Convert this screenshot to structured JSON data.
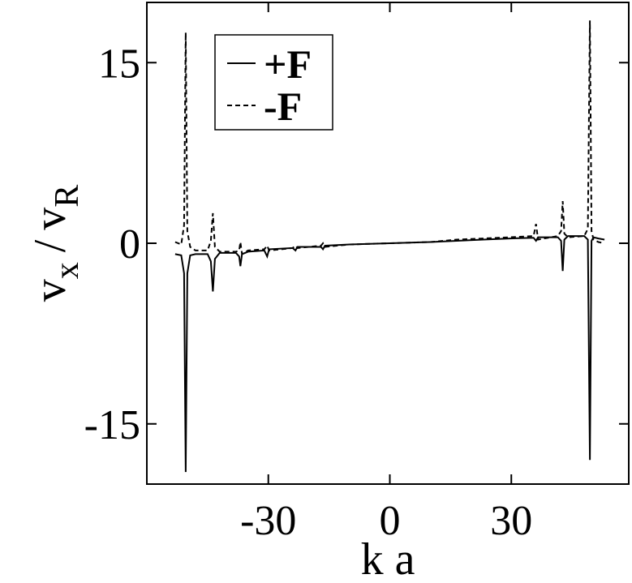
{
  "chart_data": {
    "type": "line",
    "xlabel": "k a",
    "ylabel_parts": [
      "v",
      "x",
      "/",
      "v",
      "R"
    ],
    "x": [
      -53,
      -51.5,
      -50.8,
      -50.4,
      -50,
      -49.3,
      -48,
      -45,
      -44.2,
      -43.7,
      -43.2,
      -42,
      -38,
      -37.2,
      -36.9,
      -36.5,
      -35,
      -31,
      -30.3,
      -29.8,
      -24,
      -23.3,
      -22.8,
      -17,
      -16.5,
      -16,
      -10,
      0,
      10,
      16.5,
      23,
      29.7,
      35.5,
      36.1,
      36.6,
      41.5,
      42.3,
      42.7,
      43.1,
      44,
      48,
      48.9,
      49.4,
      49.8,
      50.3,
      51.5,
      53
    ],
    "series": [
      {
        "name": "+F",
        "color": "#000000",
        "dash": false,
        "values": [
          -0.9,
          -1.0,
          -2.5,
          -19,
          -2.5,
          -1.0,
          -0.9,
          -0.9,
          -1.5,
          -4.0,
          -1.3,
          -0.8,
          -0.8,
          -1.1,
          -1.9,
          -0.9,
          -0.7,
          -0.6,
          -1.1,
          -0.5,
          -0.4,
          -0.6,
          -0.3,
          -0.3,
          -0.5,
          -0.2,
          -0.1,
          0,
          0.1,
          0.2,
          0.3,
          0.4,
          0.45,
          0.2,
          0.5,
          0.5,
          0.2,
          -2.3,
          0.3,
          0.6,
          0.6,
          0.3,
          -18,
          0.2,
          0.5,
          0.4,
          0.3
        ]
      },
      {
        "name": "-F",
        "color": "#000000",
        "dash": true,
        "values": [
          0.1,
          -0.1,
          1.5,
          17.5,
          1.0,
          -0.3,
          -0.6,
          -0.6,
          0.2,
          2.5,
          -0.3,
          -0.7,
          -0.7,
          -0.6,
          0.1,
          -0.9,
          -0.6,
          -0.5,
          -0.2,
          -0.6,
          -0.4,
          -0.2,
          -0.4,
          -0.2,
          0,
          -0.3,
          -0.1,
          0,
          0.1,
          0.3,
          0.4,
          0.5,
          0.6,
          1.6,
          0.3,
          0.6,
          1.0,
          3.5,
          0.8,
          0.5,
          0.6,
          1.2,
          18.5,
          1.0,
          0.3,
          0.1,
          0
        ]
      }
    ],
    "xlim": [
      -60,
      59
    ],
    "ylim": [
      -20,
      20
    ],
    "xticks": [
      -30,
      0,
      30
    ],
    "yticks": [
      -15,
      0,
      15
    ],
    "legend": "upper-left"
  }
}
